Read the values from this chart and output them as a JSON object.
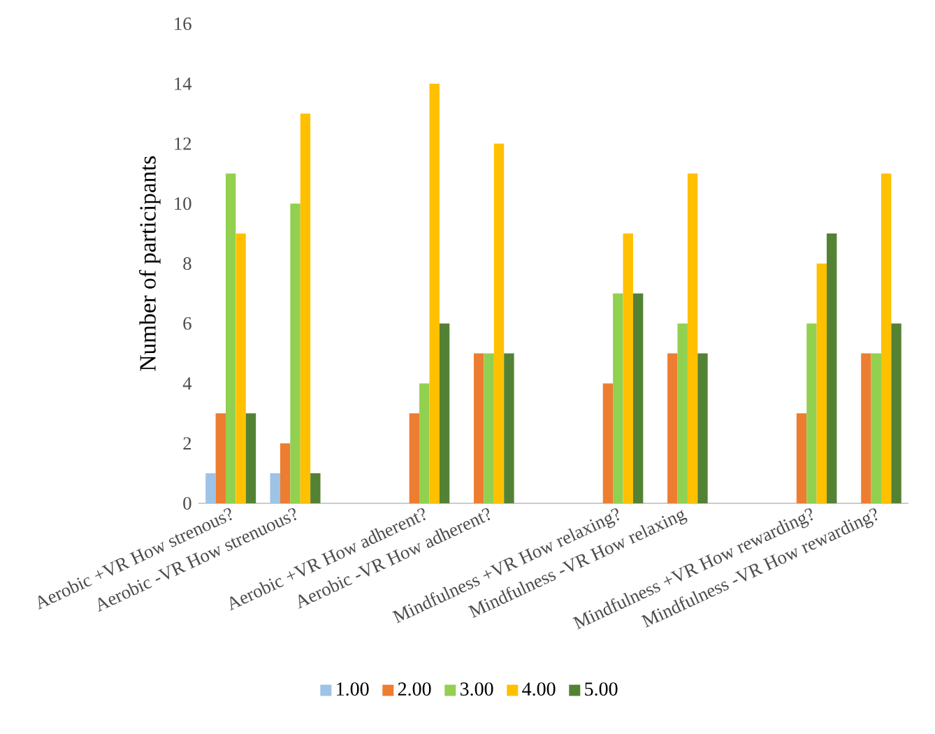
{
  "chart_data": {
    "type": "bar",
    "ylabel": "Number of participants",
    "categories": [
      "Aerobic +VR How strenous?",
      "Aerobic -VR How strenuous?",
      null,
      "Aerobic +VR How adherent?",
      "Aerobic -VR How adherent?",
      null,
      "Mindfulness +VR How relaxing?",
      "Mindfulness -VR How relaxing",
      null,
      "Mindfulness +VR How rewarding?",
      "Mindfulness -VR How rewarding?"
    ],
    "series": [
      {
        "name": "1.00",
        "color": "#9dc3e6",
        "values": [
          1,
          1,
          null,
          null,
          null,
          null,
          null,
          null,
          null,
          null,
          null
        ]
      },
      {
        "name": "2.00",
        "color": "#ed7d31",
        "values": [
          3,
          2,
          null,
          3,
          5,
          null,
          4,
          5,
          null,
          3,
          5
        ]
      },
      {
        "name": "3.00",
        "color": "#92d050",
        "values": [
          11,
          10,
          null,
          4,
          5,
          null,
          7,
          6,
          null,
          6,
          5
        ]
      },
      {
        "name": "4.00",
        "color": "#ffc000",
        "values": [
          9,
          13,
          null,
          14,
          12,
          null,
          9,
          11,
          null,
          8,
          11
        ]
      },
      {
        "name": "5.00",
        "color": "#548235",
        "values": [
          3,
          1,
          null,
          6,
          5,
          null,
          7,
          5,
          null,
          9,
          6
        ]
      }
    ],
    "ylim": [
      0,
      16
    ],
    "yticks": [
      0,
      2,
      4,
      6,
      8,
      10,
      12,
      14,
      16
    ],
    "grid": false,
    "legend": "bottom"
  }
}
